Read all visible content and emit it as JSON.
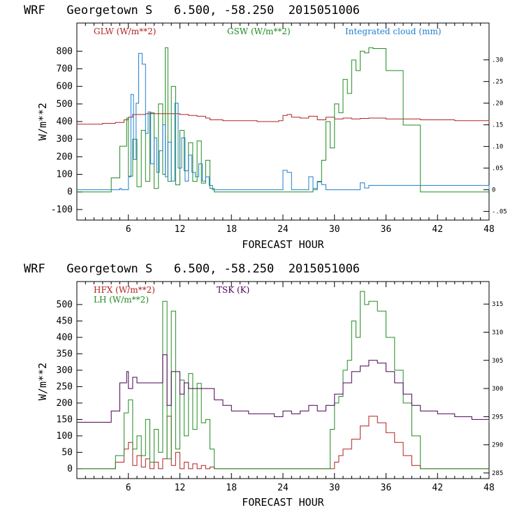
{
  "chart_data": [
    {
      "type": "line",
      "title": "WRF   Georgetown S   6.500, -58.250  2015051006",
      "xlabel": "FORECAST HOUR",
      "ylabel": "W/m**2",
      "xlim": [
        0,
        48
      ],
      "ylim": [
        -160,
        960
      ],
      "y2lim": [
        -0.07,
        0.385
      ],
      "xticks": [
        "6",
        "12",
        "18",
        "24",
        "30",
        "36",
        "42",
        "48"
      ],
      "yticks": [
        "-100",
        "0",
        "100",
        "200",
        "300",
        "400",
        "500",
        "600",
        "700",
        "800"
      ],
      "y2ticks": [
        "-.05",
        "0",
        ".05",
        ".10",
        ".15",
        ".20",
        ".25",
        ".30"
      ],
      "series": [
        {
          "name": "GLW (W/m**2)",
          "color": "#b22222",
          "axis": "left",
          "x": [
            0,
            3,
            4.5,
            5.5,
            6,
            6.5,
            8,
            10,
            12,
            13,
            14,
            15,
            15.5,
            17,
            21,
            23.5,
            24,
            24.5,
            25,
            26,
            27,
            28,
            29,
            30,
            31,
            32,
            33,
            34,
            36,
            40,
            44,
            48
          ],
          "y": [
            385,
            390,
            395,
            410,
            425,
            440,
            445,
            445,
            440,
            435,
            430,
            420,
            410,
            405,
            400,
            405,
            435,
            440,
            425,
            420,
            430,
            410,
            425,
            415,
            420,
            415,
            418,
            420,
            415,
            410,
            405,
            400
          ]
        },
        {
          "name": "GSW (W/m**2)",
          "color": "#228b22",
          "axis": "left",
          "x": [
            0,
            3,
            4,
            5,
            5.8,
            6,
            6.5,
            7,
            7.5,
            8,
            8.5,
            9,
            9.5,
            10,
            10.3,
            10.6,
            11,
            11.5,
            12,
            12.5,
            13,
            13.5,
            14,
            14.5,
            15,
            15.5,
            16,
            26,
            27.5,
            28,
            28.5,
            29,
            29.5,
            30,
            30.5,
            31,
            31.5,
            32,
            32.5,
            33,
            33.5,
            34,
            34.5,
            36,
            38,
            40,
            48
          ],
          "y": [
            0,
            0,
            80,
            260,
            420,
            90,
            300,
            30,
            350,
            60,
            450,
            20,
            500,
            100,
            820,
            60,
            600,
            40,
            350,
            120,
            280,
            60,
            290,
            50,
            180,
            20,
            0,
            0,
            20,
            60,
            180,
            400,
            250,
            500,
            450,
            640,
            560,
            750,
            690,
            800,
            790,
            820,
            815,
            690,
            380,
            0,
            0
          ]
        },
        {
          "name": "Integrated cloud (mm)",
          "color": "#1e7fd0",
          "axis": "right",
          "x": [
            0,
            4.8,
            5,
            5.2,
            6,
            6.3,
            6.6,
            6.9,
            7.2,
            7.6,
            8,
            8.3,
            8.6,
            9,
            9.3,
            9.6,
            10,
            10.3,
            10.6,
            11,
            11.4,
            11.8,
            12.2,
            12.6,
            13,
            13.4,
            13.8,
            14.2,
            14.6,
            15,
            15.4,
            15.8,
            23.5,
            24,
            24.5,
            25,
            26.5,
            27,
            27.5,
            28,
            28.5,
            29,
            32.5,
            33,
            33.5,
            34,
            48
          ],
          "y": [
            0,
            0,
            0.003,
            0,
            0.03,
            0.22,
            0.07,
            0.2,
            0.315,
            0.29,
            0.13,
            0.18,
            0.06,
            0.12,
            0.04,
            0.09,
            0.15,
            0.03,
            0.11,
            0.02,
            0.2,
            0.05,
            0.12,
            0.02,
            0.08,
            0.04,
            0.03,
            0.06,
            0.02,
            0.03,
            0.01,
            0,
            0,
            0.045,
            0.04,
            0,
            0,
            0.03,
            0,
            0.018,
            0.012,
            0,
            0,
            0.016,
            0.004,
            0.01,
            0
          ]
        }
      ]
    },
    {
      "type": "line",
      "title": "WRF   Georgetown S   6.500, -58.250  2015051006",
      "xlabel": "FORECAST HOUR",
      "ylabel": "W/m**2",
      "xlim": [
        0,
        48
      ],
      "ylim": [
        -30,
        570
      ],
      "y2lim": [
        284,
        319
      ],
      "xticks": [
        "6",
        "12",
        "18",
        "24",
        "30",
        "36",
        "42",
        "48"
      ],
      "yticks": [
        "0",
        "50",
        "100",
        "150",
        "200",
        "250",
        "300",
        "350",
        "400",
        "450",
        "500"
      ],
      "y2ticks": [
        "285",
        "290",
        "295",
        "300",
        "305",
        "310",
        "315"
      ],
      "series": [
        {
          "name": "HFX (W/m**2)",
          "color": "#b22222",
          "axis": "left",
          "x": [
            0,
            3.5,
            4.5,
            5.5,
            6,
            6.5,
            7,
            7.5,
            8,
            8.5,
            9,
            9.5,
            10,
            10.5,
            11,
            11.5,
            12,
            12.5,
            13,
            13.5,
            14,
            14.5,
            15,
            15.5,
            16,
            29.5,
            30,
            30.5,
            31,
            32,
            33,
            34,
            35,
            36,
            37,
            38,
            39,
            40,
            48
          ],
          "y": [
            0,
            0,
            20,
            60,
            80,
            10,
            40,
            5,
            30,
            0,
            20,
            0,
            30,
            160,
            10,
            50,
            0,
            20,
            0,
            15,
            0,
            10,
            0,
            5,
            0,
            0,
            20,
            40,
            60,
            90,
            130,
            160,
            140,
            110,
            80,
            40,
            10,
            0,
            0
          ]
        },
        {
          "name": "LH (W/m**2)",
          "color": "#228b22",
          "axis": "left",
          "x": [
            0,
            3.5,
            4.5,
            5.5,
            6,
            6.5,
            7,
            7.5,
            8,
            8.5,
            9,
            9.5,
            10,
            10.5,
            11,
            11.5,
            12,
            12.5,
            13,
            13.5,
            14,
            14.5,
            15,
            15.5,
            16,
            29,
            29.5,
            30,
            30.5,
            31,
            31.5,
            32,
            32.5,
            33,
            33.5,
            34,
            35,
            36,
            37,
            38,
            39,
            40,
            48
          ],
          "y": [
            0,
            0,
            40,
            170,
            210,
            60,
            100,
            40,
            150,
            20,
            120,
            50,
            510,
            30,
            480,
            60,
            270,
            100,
            290,
            120,
            260,
            140,
            150,
            60,
            0,
            0,
            120,
            200,
            220,
            300,
            330,
            450,
            400,
            540,
            500,
            510,
            480,
            400,
            300,
            200,
            100,
            0,
            0
          ]
        },
        {
          "name": "TSK (K)",
          "color": "#4b0055",
          "axis": "right",
          "x": [
            0,
            3.5,
            4,
            5,
            5.8,
            6,
            6.5,
            7,
            8,
            9,
            10,
            10.5,
            11,
            12,
            12.5,
            13,
            14,
            15,
            16,
            17,
            18,
            20,
            23,
            24,
            25,
            26,
            27,
            28,
            29,
            30,
            31,
            31.5,
            32,
            33,
            34,
            35,
            36,
            37,
            38,
            39,
            40,
            42,
            44,
            46,
            48
          ],
          "y": [
            294,
            294,
            296,
            301,
            303,
            300,
            302,
            301,
            301,
            301,
            306,
            297,
            303,
            299,
            301,
            300,
            300,
            300,
            298,
            297,
            296,
            295.5,
            295,
            296,
            295.5,
            296,
            297,
            296,
            297,
            299,
            301,
            301,
            303,
            304,
            305,
            304.5,
            303,
            301,
            299,
            297,
            296,
            295.5,
            295,
            294.5,
            294
          ]
        }
      ]
    }
  ]
}
